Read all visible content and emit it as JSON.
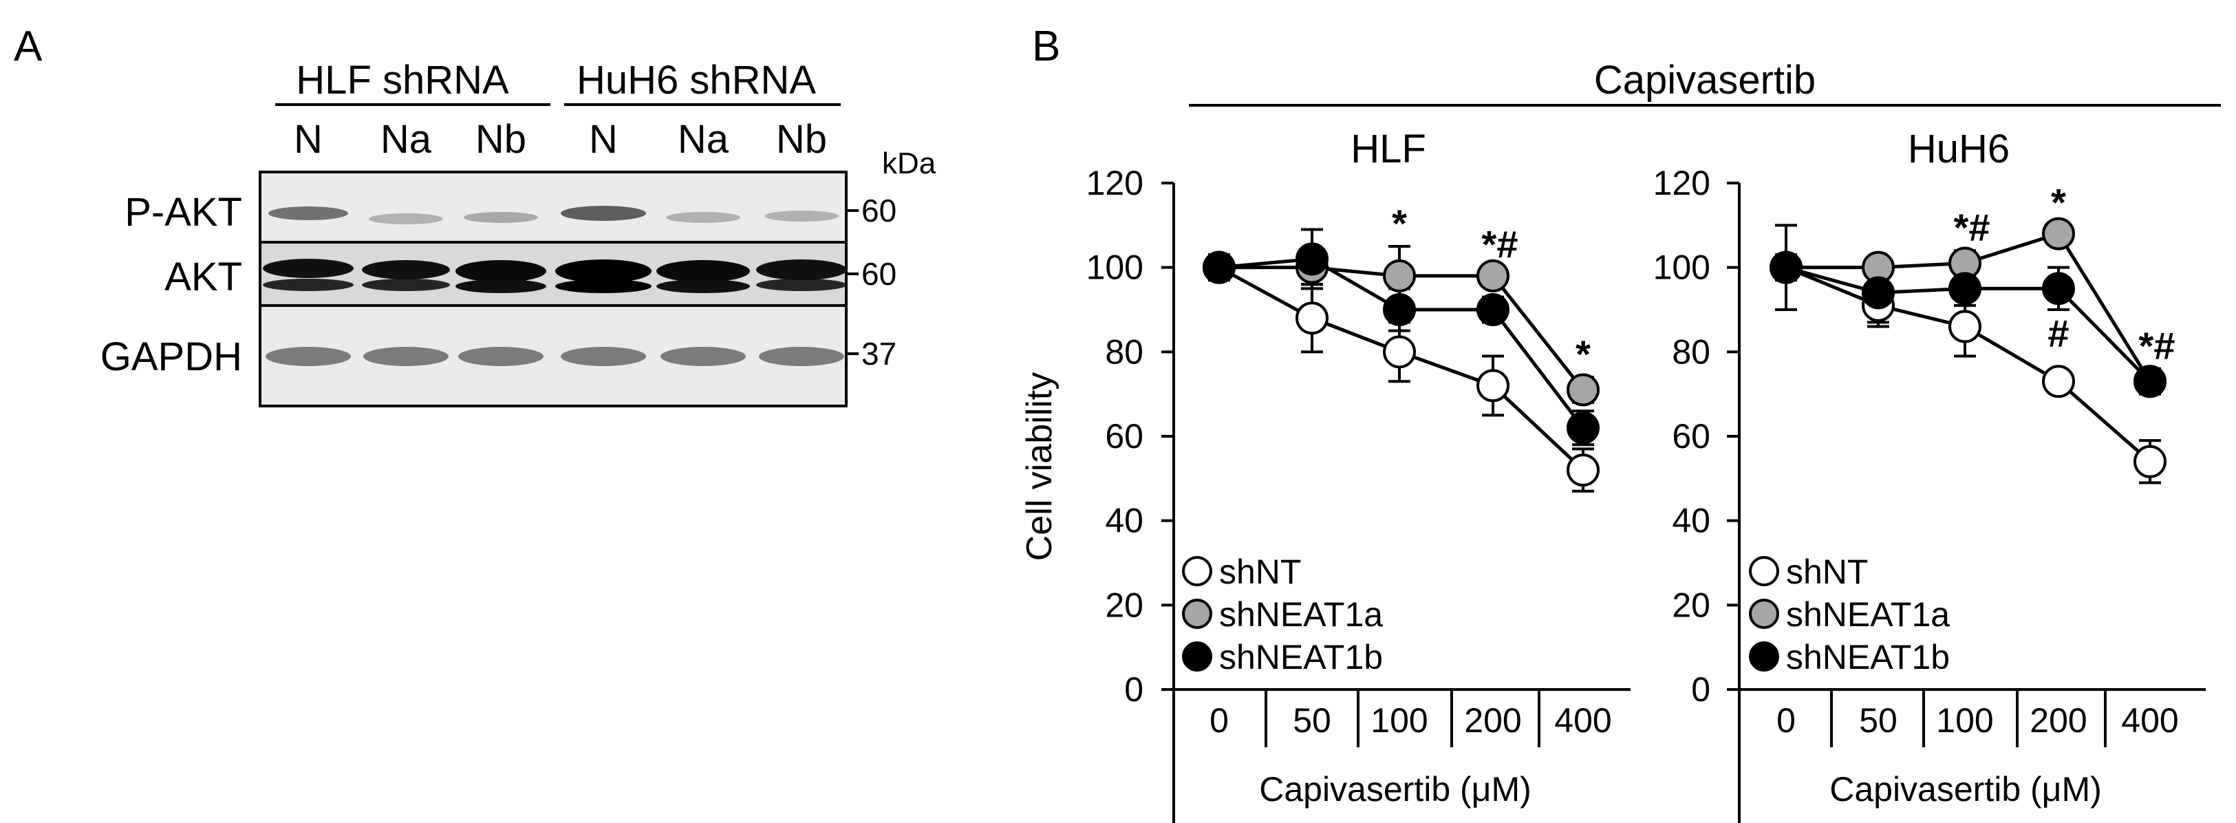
{
  "panels": {
    "a_label": "A",
    "b_label": "B"
  },
  "blot": {
    "group_labels": [
      "HLF shRNA",
      "HuH6 shRNA"
    ],
    "lane_labels": [
      "N",
      "Na",
      "Nb",
      "N",
      "Na",
      "Nb"
    ],
    "row_labels": [
      "P-AKT",
      "AKT",
      "GAPDH"
    ],
    "unit_label": "kDa",
    "markers": [
      "60",
      "60",
      "37"
    ],
    "band_intensity": {
      "P-AKT": [
        0.55,
        0.25,
        0.3,
        0.65,
        0.25,
        0.25
      ],
      "AKT": [
        0.95,
        0.9,
        0.95,
        1.0,
        0.95,
        0.95
      ],
      "GAPDH": [
        0.55,
        0.55,
        0.55,
        0.55,
        0.55,
        0.55
      ]
    }
  },
  "figure_b": {
    "drug_header": "Capivasertib",
    "y_axis_label": "Cell viability",
    "x_axis_label": "Capivasertib (μM)",
    "y_ticks": [
      "0",
      "20",
      "40",
      "60",
      "80",
      "100",
      "120"
    ],
    "x_ticks": [
      "0",
      "50",
      "100",
      "200",
      "400"
    ],
    "legend": [
      "shNT",
      "shNEAT1a",
      "shNEAT1b"
    ]
  },
  "chart_data": [
    {
      "type": "line",
      "title": "HLF",
      "xlabel": "Capivasertib (μM)",
      "ylabel": "Cell viability",
      "categories": [
        "0",
        "50",
        "100",
        "200",
        "400"
      ],
      "ylim": [
        0,
        120
      ],
      "grid": false,
      "legend_position": "bottom-left",
      "series": [
        {
          "name": "shNT",
          "color": "#ffffff",
          "values": [
            100,
            88,
            80,
            72,
            52
          ],
          "errors": [
            3,
            8,
            7,
            7,
            5
          ]
        },
        {
          "name": "shNEAT1a",
          "color": "#a6a6a6",
          "values": [
            100,
            100,
            98,
            98,
            71
          ],
          "errors": [
            2,
            4,
            7,
            2,
            3
          ]
        },
        {
          "name": "shNEAT1b",
          "color": "#000000",
          "values": [
            100,
            102,
            90,
            90,
            62
          ],
          "errors": [
            3,
            7,
            5,
            3,
            4
          ]
        }
      ],
      "annotations": [
        {
          "category": "100",
          "text": "*"
        },
        {
          "category": "200",
          "text": "*#"
        },
        {
          "category": "400",
          "text": "*"
        }
      ]
    },
    {
      "type": "line",
      "title": "HuH6",
      "xlabel": "Capivasertib (μM)",
      "ylabel": "",
      "categories": [
        "0",
        "50",
        "100",
        "200",
        "400"
      ],
      "ylim": [
        0,
        120
      ],
      "grid": false,
      "legend_position": "bottom-left",
      "series": [
        {
          "name": "shNT",
          "color": "#ffffff",
          "values": [
            100,
            91,
            86,
            73,
            54
          ],
          "errors": [
            10,
            5,
            7,
            1,
            5
          ]
        },
        {
          "name": "shNEAT1a",
          "color": "#a6a6a6",
          "values": [
            100,
            100,
            101,
            108,
            73
          ],
          "errors": [
            3,
            2,
            3,
            2,
            3
          ]
        },
        {
          "name": "shNEAT1b",
          "color": "#000000",
          "values": [
            100,
            94,
            95,
            95,
            73
          ],
          "errors": [
            3,
            7,
            4,
            5,
            3
          ]
        }
      ],
      "annotations": [
        {
          "category": "100",
          "text": "*#"
        },
        {
          "category": "200",
          "text": "*"
        },
        {
          "category": "200",
          "text": "#"
        },
        {
          "category": "400",
          "text": "*#"
        }
      ]
    }
  ]
}
